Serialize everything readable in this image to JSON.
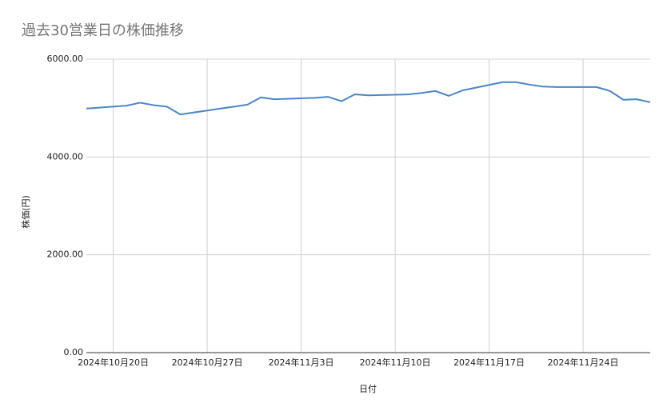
{
  "chart_data": {
    "type": "line",
    "title": "過去30営業日の株価推移",
    "x_label": "日付",
    "y_label": "株価(円)",
    "x": [
      "2024-10-18",
      "2024-10-21",
      "2024-10-22",
      "2024-10-23",
      "2024-10-24",
      "2024-10-25",
      "2024-10-28",
      "2024-10-29",
      "2024-10-30",
      "2024-10-31",
      "2024-11-01",
      "2024-11-04",
      "2024-11-05",
      "2024-11-06",
      "2024-11-07",
      "2024-11-08",
      "2024-11-11",
      "2024-11-12",
      "2024-11-13",
      "2024-11-14",
      "2024-11-15",
      "2024-11-18",
      "2024-11-19",
      "2024-11-20",
      "2024-11-21",
      "2024-11-22",
      "2024-11-25",
      "2024-11-26",
      "2024-11-27",
      "2024-11-28",
      "2024-11-29"
    ],
    "series": [
      {
        "name": "株価",
        "color": "#4a86c8",
        "values": [
          4990,
          5050,
          5110,
          5060,
          5030,
          4870,
          4990,
          5030,
          5070,
          5220,
          5180,
          5210,
          5230,
          5140,
          5280,
          5260,
          5280,
          5310,
          5350,
          5250,
          5360,
          5530,
          5530,
          5480,
          5440,
          5430,
          5430,
          5350,
          5170,
          5180,
          5120
        ]
      }
    ],
    "xlim": [
      "2024-10-18",
      "2024-11-29"
    ],
    "xticks": [
      {
        "value": "2024-10-20",
        "label": "2024年10月20日"
      },
      {
        "value": "2024-10-27",
        "label": "2024年10月27日"
      },
      {
        "value": "2024-11-03",
        "label": "2024年11月3日"
      },
      {
        "value": "2024-11-10",
        "label": "2024年11月10日"
      },
      {
        "value": "2024-11-17",
        "label": "2024年11月17日"
      },
      {
        "value": "2024-11-24",
        "label": "2024年11月24日"
      }
    ],
    "ylim": [
      0,
      6000
    ],
    "yticks": [
      {
        "value": 0,
        "label": "0.00"
      },
      {
        "value": 2000,
        "label": "2000.00"
      },
      {
        "value": 4000,
        "label": "4000.00"
      },
      {
        "value": 6000,
        "label": "6000.00"
      }
    ],
    "grid": true
  }
}
